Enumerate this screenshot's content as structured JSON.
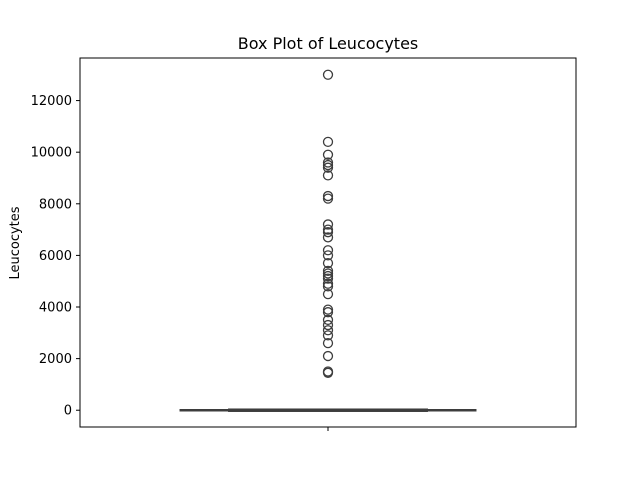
{
  "chart_data": {
    "type": "box",
    "title": "Box Plot of Leucocytes",
    "xlabel": "",
    "ylabel": "Leucocytes",
    "ylim": [
      -650,
      13650
    ],
    "yticks": [
      0,
      2000,
      4000,
      6000,
      8000,
      10000,
      12000
    ],
    "ytick_labels": [
      "0",
      "2000",
      "4000",
      "6000",
      "8000",
      "10000",
      "12000"
    ],
    "grid": false,
    "box": {
      "min": 0,
      "q1": 0,
      "median": 0,
      "q3": 0,
      "max": 0
    },
    "outliers": [
      13000,
      10400,
      9900,
      9600,
      9500,
      9400,
      9100,
      8300,
      8200,
      7200,
      7000,
      6900,
      6700,
      6200,
      6000,
      5700,
      5400,
      5300,
      5200,
      5100,
      4900,
      4800,
      4500,
      3900,
      3800,
      3500,
      3300,
      3100,
      2900,
      2600,
      2100,
      1500,
      1450
    ],
    "colors": {
      "box_edge": "#3d3d3d",
      "outlier_edge": "#3d3d3d",
      "frame": "#000000"
    }
  }
}
